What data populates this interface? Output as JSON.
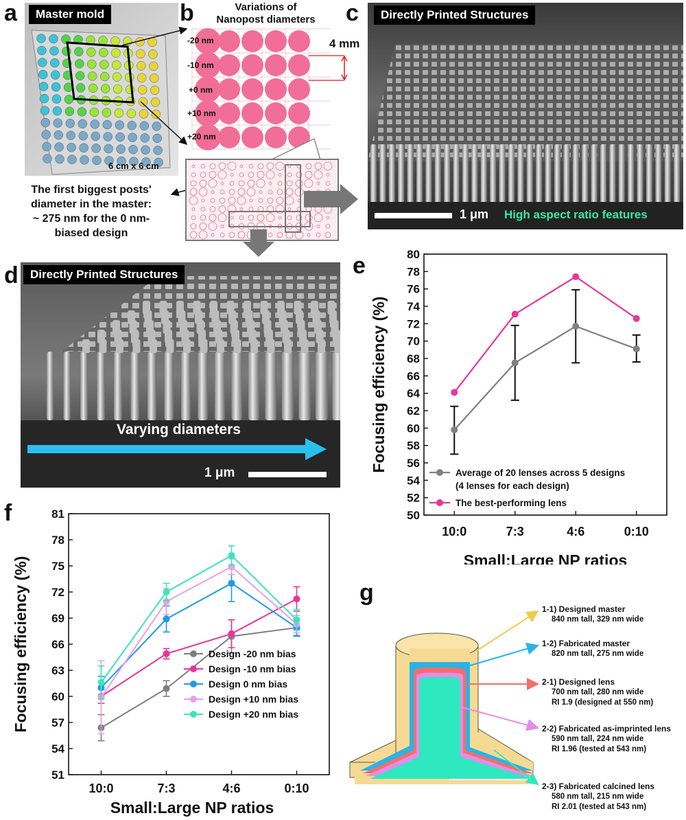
{
  "panels": {
    "a": {
      "label": "a",
      "tag": "Master mold",
      "size_text": "6 cm x 6 cm",
      "caption": [
        "The first biggest posts'",
        "diameter in the master:",
        "~ 275 nm for the 0 nm-",
        "biased design"
      ]
    },
    "b": {
      "label": "b",
      "title": [
        "Variations of",
        "Nanopost diameters"
      ],
      "row_labels": [
        "-20 nm",
        "-10 nm",
        "+0 nm",
        "+10 nm",
        "+20 nm"
      ],
      "spacing_label": "4 mm"
    },
    "c": {
      "label": "c",
      "tag": "Directly Printed Structures",
      "scale": "1 μm",
      "note": "High aspect ratio features"
    },
    "d": {
      "label": "d",
      "tag": "Directly Printed Structures",
      "arrow_text": "Varying diameters",
      "scale": "1 μm"
    },
    "e": {
      "label": "e"
    },
    "f": {
      "label": "f"
    },
    "g": {
      "label": "g",
      "callouts": [
        {
          "title": "1-1) Designed master",
          "lines": [
            "840 nm tall, 329 nm wide"
          ],
          "color": "#f2c94c"
        },
        {
          "title": "1-2) Fabricated master",
          "lines": [
            "820 nm tall, 275 nm wide"
          ],
          "color": "#27b4e8"
        },
        {
          "title": "2-1) Designed lens",
          "lines": [
            "700 nm tall, 280 nm wide",
            "RI 1.9 (designed at 550 nm)"
          ],
          "color": "#f0716a"
        },
        {
          "title": "2-2) Fabricated as-imprinted lens",
          "lines": [
            "590 nm tall, 224 nm wide",
            "RI 1.96 (tested at 543 nm)"
          ],
          "color": "#e88ae8"
        },
        {
          "title": "2-3) Fabricated calcined lens",
          "lines": [
            "580 nm tall, 215 nm wide",
            "RI 2.01 (tested at 543 nm)"
          ],
          "color": "#2ee8c0"
        }
      ]
    }
  },
  "chart_data": [
    {
      "type": "line",
      "panel": "e",
      "categories": [
        "10:0",
        "7:3",
        "4:6",
        "0:10"
      ],
      "xlabel": "Small:Large NP ratios",
      "ylabel": "Focusing efficiency (%)",
      "ylim": [
        50,
        80
      ],
      "yticks": [
        50,
        52,
        54,
        56,
        58,
        60,
        62,
        64,
        66,
        68,
        70,
        72,
        74,
        76,
        78,
        80
      ],
      "legend": [
        "Average of 20 lenses across 5 designs",
        "(4 lenses for each design)",
        "The best-performing lens"
      ],
      "series": [
        {
          "name": "Average of 20 lenses across 5 designs (4 lenses for each design)",
          "color": "#808080",
          "values": [
            59.8,
            67.5,
            71.7,
            69.1
          ],
          "err_low": [
            57.0,
            63.2,
            67.5,
            67.6
          ],
          "err_high": [
            62.5,
            71.8,
            75.9,
            70.7
          ]
        },
        {
          "name": "The best-performing lens",
          "color": "#e8369a",
          "values": [
            64.1,
            73.1,
            77.4,
            72.6
          ]
        }
      ]
    },
    {
      "type": "line",
      "panel": "f",
      "categories": [
        "10:0",
        "7:3",
        "4:6",
        "0:10"
      ],
      "xlabel": "Small:Large NP ratios",
      "ylabel": "Focusing efficiency (%)",
      "ylim": [
        51,
        81
      ],
      "yticks": [
        51,
        54,
        57,
        60,
        63,
        66,
        69,
        72,
        75,
        78,
        81
      ],
      "series": [
        {
          "name": "Design -20 nm bias",
          "color": "#7f7f7f",
          "values": [
            56.4,
            60.9,
            66.9,
            67.9
          ],
          "err": [
            1.5,
            0.9,
            1.9,
            0.9
          ]
        },
        {
          "name": "Design -10 nm bias",
          "color": "#e8369a",
          "values": [
            60.0,
            64.9,
            67.2,
            71.2
          ],
          "err": [
            0.8,
            0.6,
            1.6,
            1.4
          ]
        },
        {
          "name": "Design 0 nm bias",
          "color": "#1e9be8",
          "values": [
            61.0,
            68.9,
            73.0,
            67.9
          ],
          "err": [
            1.3,
            1.5,
            2.1,
            1.0
          ]
        },
        {
          "name": "Design +10 nm bias",
          "color": "#e8a0e8",
          "values": [
            59.9,
            70.9,
            74.9,
            68.3
          ],
          "err": [
            4.2,
            1.5,
            0.9,
            1.0
          ]
        },
        {
          "name": "Design +20 nm bias",
          "color": "#3ae6b8",
          "values": [
            61.6,
            72.0,
            76.2,
            68.8
          ],
          "err": [
            1.9,
            1.0,
            1.1,
            1.2
          ]
        }
      ]
    }
  ]
}
